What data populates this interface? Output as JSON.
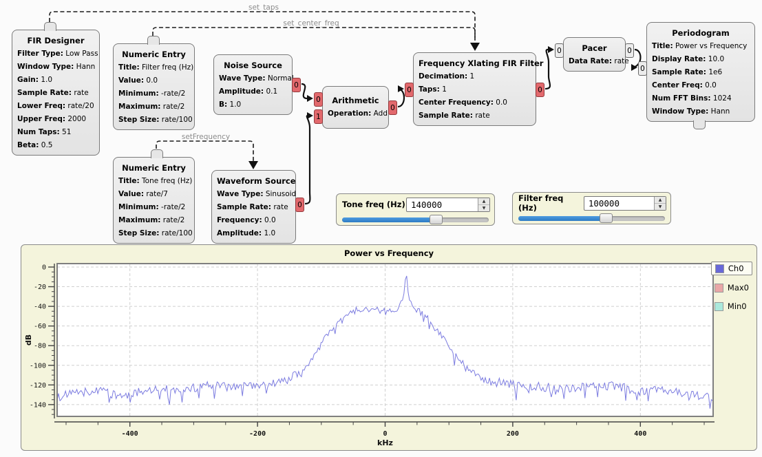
{
  "flowgraph": {
    "connections": {
      "set_taps": "set_taps",
      "set_center_freq": "set_center_freq",
      "set_frequency": "setFrequency"
    },
    "blocks": [
      {
        "title": "FIR Designer",
        "params": [
          {
            "k": "Filter Type:",
            "v": "Low Pass"
          },
          {
            "k": "Window Type:",
            "v": "Hann"
          },
          {
            "k": "Gain:",
            "v": "1.0"
          },
          {
            "k": "Sample Rate:",
            "v": "rate"
          },
          {
            "k": "Lower Freq:",
            "v": "rate/20"
          },
          {
            "k": "Upper Freq:",
            "v": "2000"
          },
          {
            "k": "Num Taps:",
            "v": "51"
          },
          {
            "k": "Beta:",
            "v": "0.5"
          }
        ]
      },
      {
        "title": "Numeric Entry",
        "params": [
          {
            "k": "Title:",
            "v": "Filter freq (Hz)"
          },
          {
            "k": "Value:",
            "v": "0.0"
          },
          {
            "k": "Minimum:",
            "v": "-rate/2"
          },
          {
            "k": "Maximum:",
            "v": "rate/2"
          },
          {
            "k": "Step Size:",
            "v": "rate/100"
          }
        ]
      },
      {
        "title": "Noise Source",
        "ports_out": [
          "0"
        ],
        "params": [
          {
            "k": "Wave Type:",
            "v": "Normal"
          },
          {
            "k": "Amplitude:",
            "v": "0.1"
          },
          {
            "k": "B:",
            "v": "1.0"
          }
        ]
      },
      {
        "title": "Arithmetic",
        "ports_in": [
          "0",
          "1"
        ],
        "ports_out": [
          "0"
        ],
        "params": [
          {
            "k": "Operation:",
            "v": "Add"
          }
        ]
      },
      {
        "title": "Frequency Xlating FIR Filter",
        "ports_in": [
          "0"
        ],
        "ports_out": [
          "0"
        ],
        "params": [
          {
            "k": "Decimation:",
            "v": "1"
          },
          {
            "k": "Taps:",
            "v": "1"
          },
          {
            "k": "Center Frequency:",
            "v": "0.0"
          },
          {
            "k": "Sample Rate:",
            "v": "rate"
          }
        ]
      },
      {
        "title": "Pacer",
        "ports_in": [
          "0"
        ],
        "ports_out": [
          "0"
        ],
        "params": [
          {
            "k": "Data Rate:",
            "v": "rate"
          }
        ]
      },
      {
        "title": "Periodogram",
        "ports_in": [
          "0"
        ],
        "params": [
          {
            "k": "Title:",
            "v": "Power vs Frequency"
          },
          {
            "k": "Display Rate:",
            "v": "10.0"
          },
          {
            "k": "Sample Rate:",
            "v": "1e6"
          },
          {
            "k": "Center Freq:",
            "v": "0.0"
          },
          {
            "k": "Num FFT Bins:",
            "v": "1024"
          },
          {
            "k": "Window Type:",
            "v": "Hann"
          }
        ]
      },
      {
        "title": "Numeric Entry",
        "params": [
          {
            "k": "Title:",
            "v": "Tone freq (Hz)"
          },
          {
            "k": "Value:",
            "v": "rate/7"
          },
          {
            "k": "Minimum:",
            "v": "-rate/2"
          },
          {
            "k": "Maximum:",
            "v": "rate/2"
          },
          {
            "k": "Step Size:",
            "v": "rate/100"
          }
        ]
      },
      {
        "title": "Waveform Source",
        "ports_out": [
          "0"
        ],
        "params": [
          {
            "k": "Wave Type:",
            "v": "Sinusoid"
          },
          {
            "k": "Sample Rate:",
            "v": "rate"
          },
          {
            "k": "Frequency:",
            "v": "0.0"
          },
          {
            "k": "Amplitude:",
            "v": "1.0"
          }
        ]
      }
    ]
  },
  "controls": [
    {
      "label": "Tone freq (Hz)",
      "value": "140000",
      "slider_pos": 0.64
    },
    {
      "label": "Filter freq (Hz)",
      "value": "100000",
      "slider_pos": 0.6
    }
  ],
  "chart_data": {
    "type": "line",
    "title": "Power vs Frequency",
    "xlabel": "kHz",
    "ylabel": "dB",
    "xlim": [
      -514,
      514
    ],
    "ylim": [
      -152,
      3.5
    ],
    "y_ticks": [
      0,
      -20,
      -40,
      -60,
      -80,
      -100,
      -120,
      -140
    ],
    "y_minor_step": 5,
    "x_ticks": [
      -400,
      -200,
      0,
      200,
      400
    ],
    "x_minor_step": 50,
    "grid": true,
    "legend_position": "right",
    "legend": [
      {
        "name": "Ch0",
        "color": "#6868d8",
        "selected": true
      },
      {
        "name": "Max0",
        "color": "#e9a7a7",
        "selected": false
      },
      {
        "name": "Min0",
        "color": "#abe9dc",
        "selected": false
      }
    ],
    "series_color": "#7c7ce0",
    "peak": {
      "khz": 33,
      "db": -4
    },
    "noise_floor_db": -125,
    "envelope": [
      [
        -514,
        -133
      ],
      [
        -480,
        -128
      ],
      [
        -450,
        -126
      ],
      [
        -420,
        -132
      ],
      [
        -390,
        -128
      ],
      [
        -360,
        -124
      ],
      [
        -330,
        -126
      ],
      [
        -300,
        -123
      ],
      [
        -270,
        -121
      ],
      [
        -240,
        -123
      ],
      [
        -210,
        -120
      ],
      [
        -180,
        -119
      ],
      [
        -160,
        -117
      ],
      [
        -145,
        -112
      ],
      [
        -130,
        -107
      ],
      [
        -115,
        -95
      ],
      [
        -100,
        -78
      ],
      [
        -90,
        -68
      ],
      [
        -80,
        -61
      ],
      [
        -70,
        -55
      ],
      [
        -60,
        -49
      ],
      [
        -50,
        -44
      ],
      [
        -40,
        -43
      ],
      [
        -25,
        -44
      ],
      [
        -10,
        -42
      ],
      [
        5,
        -44
      ],
      [
        20,
        -43
      ],
      [
        29,
        -30
      ],
      [
        33,
        -4
      ],
      [
        37,
        -32
      ],
      [
        45,
        -44
      ],
      [
        55,
        -45
      ],
      [
        65,
        -50
      ],
      [
        80,
        -63
      ],
      [
        95,
        -75
      ],
      [
        110,
        -90
      ],
      [
        125,
        -100
      ],
      [
        140,
        -108
      ],
      [
        155,
        -114
      ],
      [
        170,
        -117
      ],
      [
        200,
        -120
      ],
      [
        240,
        -122
      ],
      [
        280,
        -124
      ],
      [
        320,
        -122
      ],
      [
        360,
        -121
      ],
      [
        400,
        -127
      ],
      [
        440,
        -125
      ],
      [
        480,
        -130
      ],
      [
        514,
        -133
      ]
    ]
  }
}
